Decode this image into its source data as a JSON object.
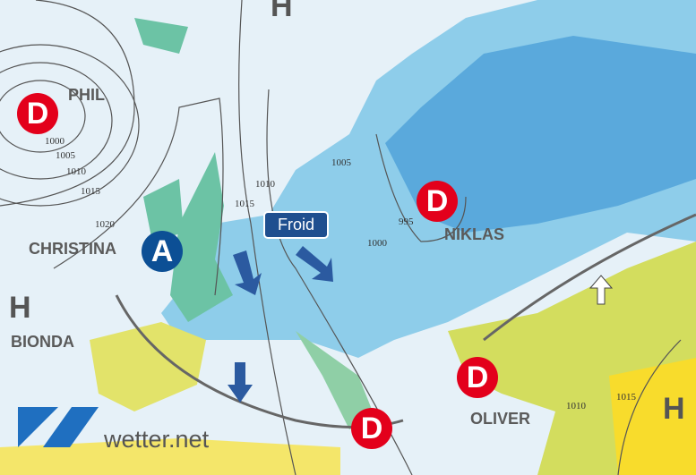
{
  "map": {
    "pressure_systems": [
      {
        "type": "D",
        "name": "PHIL"
      },
      {
        "type": "A",
        "name": "CHRISTINA"
      },
      {
        "type": "D",
        "name": "NIKLAS"
      },
      {
        "type": "D",
        "name": ""
      },
      {
        "type": "D",
        "name": "OLIVER"
      },
      {
        "type": "H",
        "name": "BIONDA"
      },
      {
        "type": "H",
        "name": ""
      },
      {
        "type": "H",
        "name": ""
      }
    ],
    "labels": {
      "phil": "PHIL",
      "christina": "CHRISTINA",
      "bionda": "BIONDA",
      "niklas": "NIKLAS",
      "oliver": "OLIVER",
      "h": "H",
      "d": "D",
      "a": "A"
    },
    "air_mass_label": "Froid",
    "isobars": [
      "1000",
      "1005",
      "1010",
      "1015",
      "1020",
      "1015",
      "1010",
      "1005",
      "1000",
      "995",
      "1015",
      "1010"
    ],
    "colors": {
      "low": "#e3001b",
      "high": "#0c4f95",
      "cold": "#5aa9dc",
      "mild": "#6cc3a5",
      "warm": "#f4e66a"
    }
  },
  "brand": "wetter.net"
}
